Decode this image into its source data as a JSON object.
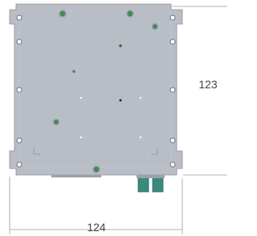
{
  "dimensions": {
    "height": "123",
    "width": "124"
  }
}
